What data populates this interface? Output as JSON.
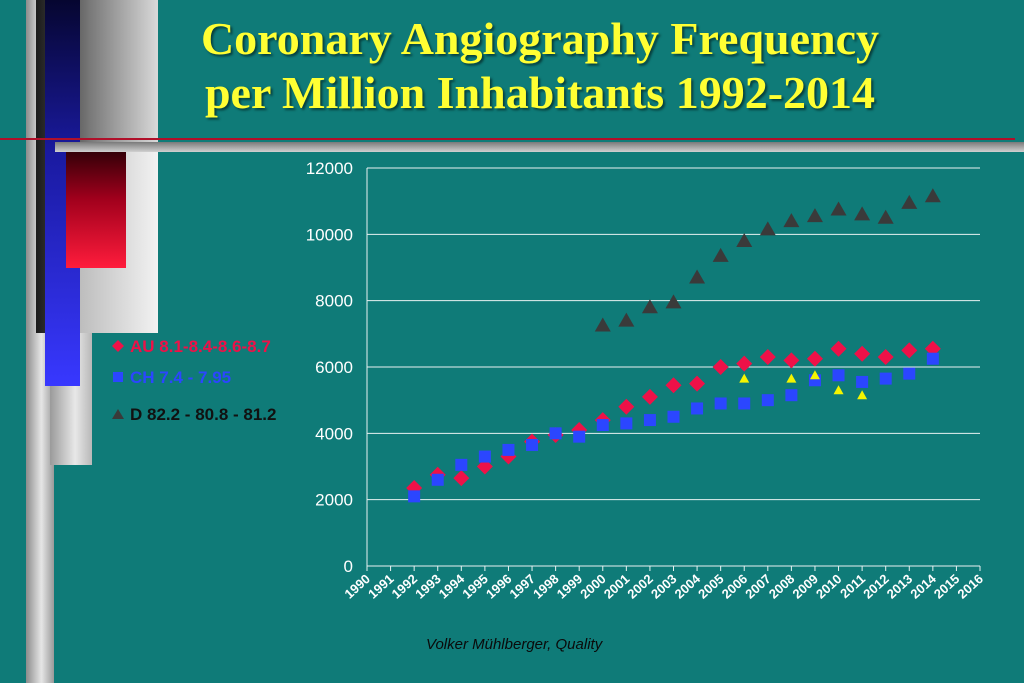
{
  "title": {
    "line1": "Coronary Angiography Frequency",
    "line2": "per Million Inhabitants 1992-2014"
  },
  "footer": "Volker Mühlberger, Quality",
  "colors": {
    "background": "#0f7b78",
    "title": "#ffff33",
    "au": "#ee1148",
    "ch": "#2b46ff",
    "d": "#3a3a3a",
    "extra": "#f5f500"
  },
  "legend": [
    {
      "label": "AU 8.1-8.4-8.6-8.7",
      "icon": "diamond-icon",
      "color": "#ee1148"
    },
    {
      "label": "CH 7.4 - 7.95",
      "icon": "square-icon",
      "color": "#2b46ff"
    },
    {
      "label": "D  82.2 - 80.8 - 81.2",
      "icon": "triangle-icon",
      "color": "#3a3a3a"
    }
  ],
  "chart_data": {
    "type": "scatter",
    "title": "",
    "xlabel": "",
    "ylabel": "",
    "xlim": [
      1990,
      2016
    ],
    "ylim": [
      0,
      12000
    ],
    "x_ticks": [
      "1990",
      "1991",
      "1992",
      "1993",
      "1994",
      "1995",
      "1996",
      "1997",
      "1998",
      "1999",
      "2000",
      "2001",
      "2002",
      "2003",
      "2004",
      "2005",
      "2006",
      "2007",
      "2008",
      "2009",
      "2010",
      "2011",
      "2012",
      "2013",
      "2014",
      "2015",
      "2016"
    ],
    "y_ticks": [
      0,
      2000,
      4000,
      6000,
      8000,
      10000,
      12000
    ],
    "grid": "horizontal",
    "legend_position": "left",
    "series": [
      {
        "name": "AU 8.1-8.4-8.6-8.7",
        "marker": "diamond",
        "color": "#ee1148",
        "points": [
          [
            1992,
            2350
          ],
          [
            1993,
            2750
          ],
          [
            1994,
            2650
          ],
          [
            1995,
            3000
          ],
          [
            1996,
            3300
          ],
          [
            1997,
            3750
          ],
          [
            1998,
            3950
          ],
          [
            1999,
            4100
          ],
          [
            2000,
            4400
          ],
          [
            2001,
            4800
          ],
          [
            2002,
            5100
          ],
          [
            2003,
            5450
          ],
          [
            2004,
            5500
          ],
          [
            2005,
            6000
          ],
          [
            2006,
            6100
          ],
          [
            2007,
            6300
          ],
          [
            2008,
            6200
          ],
          [
            2009,
            6250
          ],
          [
            2010,
            6550
          ],
          [
            2011,
            6400
          ],
          [
            2012,
            6300
          ],
          [
            2013,
            6500
          ],
          [
            2014,
            6550
          ]
        ]
      },
      {
        "name": "CH 7.4 - 7.95",
        "marker": "square",
        "color": "#2b46ff",
        "points": [
          [
            1992,
            2100
          ],
          [
            1993,
            2600
          ],
          [
            1994,
            3050
          ],
          [
            1995,
            3300
          ],
          [
            1996,
            3500
          ],
          [
            1997,
            3650
          ],
          [
            1998,
            4000
          ],
          [
            1999,
            3900
          ],
          [
            2000,
            4250
          ],
          [
            2001,
            4300
          ],
          [
            2002,
            4400
          ],
          [
            2003,
            4500
          ],
          [
            2004,
            4750
          ],
          [
            2005,
            4900
          ],
          [
            2006,
            4900
          ],
          [
            2007,
            5000
          ],
          [
            2008,
            5150
          ],
          [
            2009,
            5600
          ],
          [
            2010,
            5750
          ],
          [
            2011,
            5550
          ],
          [
            2012,
            5650
          ],
          [
            2013,
            5800
          ],
          [
            2014,
            6250
          ]
        ]
      },
      {
        "name": "D  82.2 - 80.8 - 81.2",
        "marker": "triangle",
        "color": "#3a3a3a",
        "points": [
          [
            2000,
            7250
          ],
          [
            2001,
            7400
          ],
          [
            2002,
            7800
          ],
          [
            2003,
            7950
          ],
          [
            2004,
            8700
          ],
          [
            2005,
            9350
          ],
          [
            2006,
            9800
          ],
          [
            2007,
            10150
          ],
          [
            2008,
            10400
          ],
          [
            2009,
            10550
          ],
          [
            2010,
            10750
          ],
          [
            2011,
            10600
          ],
          [
            2012,
            10500
          ],
          [
            2013,
            10950
          ],
          [
            2014,
            11150
          ]
        ]
      },
      {
        "marker": "small-triangle",
        "color": "#f5f500",
        "points": [
          [
            2006,
            5650
          ],
          [
            2008,
            5650
          ],
          [
            2009,
            5750
          ],
          [
            2010,
            5300
          ],
          [
            2011,
            5150
          ]
        ]
      }
    ]
  }
}
